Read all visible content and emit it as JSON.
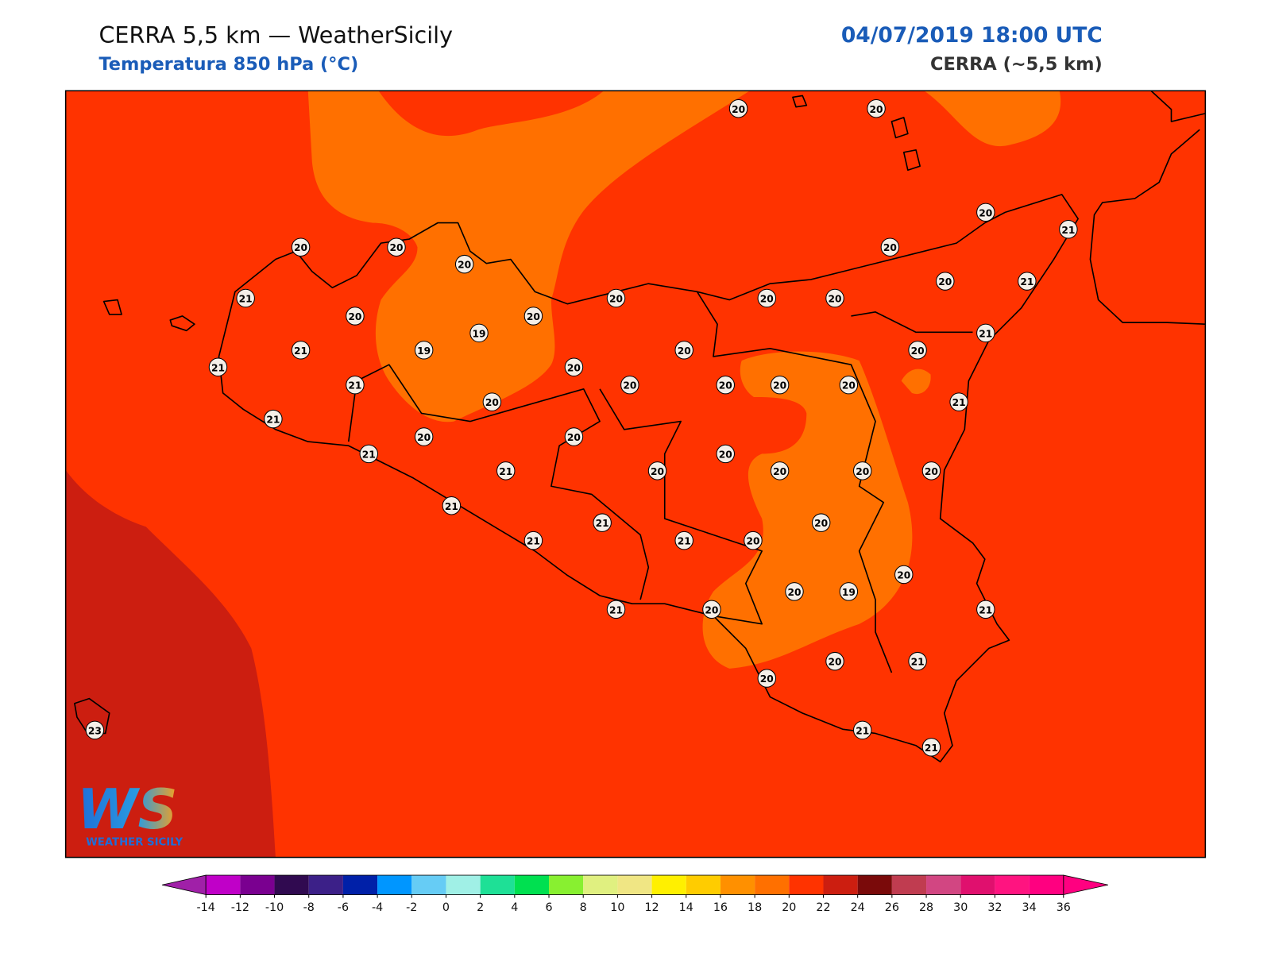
{
  "header": {
    "title": "CERRA 5,5 km — WeatherSicily",
    "subtitle": "Temperatura 850 hPa (°C)",
    "time": "04/07/2019 18:00 UTC",
    "model": "CERRA (~5,5 km)"
  },
  "logo": {
    "mark": "WS",
    "text": "WEATHER SICILY"
  },
  "stations": [
    20,
    20,
    20,
    21,
    20,
    20,
    20,
    20,
    21,
    20,
    20,
    20,
    20,
    20,
    20,
    21,
    19,
    19,
    21,
    21,
    20,
    21,
    20,
    20,
    21,
    20,
    20,
    20,
    20,
    20,
    21,
    21,
    20,
    20,
    21,
    21,
    20,
    20,
    20,
    20,
    20,
    21,
    21,
    20,
    21,
    21,
    20,
    20,
    20,
    19,
    21,
    20,
    21,
    20,
    21,
    20,
    21,
    21,
    23
  ],
  "colorbar": {
    "ticks": [
      -14,
      -12,
      -10,
      -8,
      -6,
      -4,
      -2,
      0,
      2,
      4,
      6,
      8,
      10,
      12,
      14,
      16,
      18,
      20,
      22,
      24,
      26,
      28,
      30,
      32,
      34,
      36
    ],
    "colors": [
      "#c000c8",
      "#7a0090",
      "#300a50",
      "#3c2088",
      "#0020a8",
      "#0096ff",
      "#66ccf5",
      "#a0f0e6",
      "#1ee096",
      "#00e050",
      "#88f030",
      "#e0f080",
      "#f0e684",
      "#fff000",
      "#ffcc00",
      "#ff9000",
      "#ff7000",
      "#ff3300",
      "#cc1e10",
      "#7a0a0a",
      "#c03c50",
      "#d24682",
      "#e0106e",
      "#ff1480",
      "#ff0080"
    ],
    "under": "#a020a8",
    "over": "#ff0080"
  }
}
